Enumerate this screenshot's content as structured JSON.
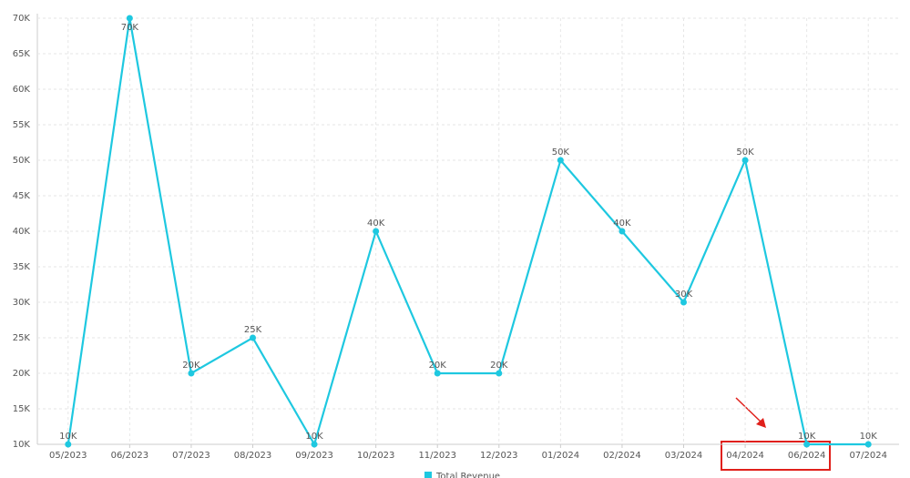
{
  "chart_data": {
    "type": "line",
    "categories": [
      "05/2023",
      "06/2023",
      "07/2023",
      "08/2023",
      "09/2023",
      "10/2023",
      "11/2023",
      "12/2023",
      "01/2024",
      "02/2024",
      "03/2024",
      "04/2024",
      "06/2024",
      "07/2024"
    ],
    "series": [
      {
        "name": "Total Revenue",
        "color": "#1ec8e0",
        "values": [
          10000,
          70000,
          20000,
          25000,
          10000,
          40000,
          20000,
          20000,
          50000,
          40000,
          30000,
          50000,
          10000,
          10000
        ],
        "value_labels": [
          "10K",
          "70K",
          "20K",
          "25K",
          "10K",
          "40K",
          "20K",
          "20K",
          "50K",
          "40K",
          "30K",
          "50K",
          "10K",
          "10K"
        ]
      }
    ],
    "ylim": [
      10000,
      70000
    ],
    "yticks": [
      {
        "value": 10000,
        "label": "10K"
      },
      {
        "value": 15000,
        "label": "15K"
      },
      {
        "value": 20000,
        "label": "20K"
      },
      {
        "value": 25000,
        "label": "25K"
      },
      {
        "value": 30000,
        "label": "30K"
      },
      {
        "value": 35000,
        "label": "35K"
      },
      {
        "value": 40000,
        "label": "40K"
      },
      {
        "value": 45000,
        "label": "45K"
      },
      {
        "value": 50000,
        "label": "50K"
      },
      {
        "value": 55000,
        "label": "55K"
      },
      {
        "value": 60000,
        "label": "60K"
      },
      {
        "value": 65000,
        "label": "65K"
      },
      {
        "value": 70000,
        "label": "70K"
      }
    ],
    "grid": true
  }
}
